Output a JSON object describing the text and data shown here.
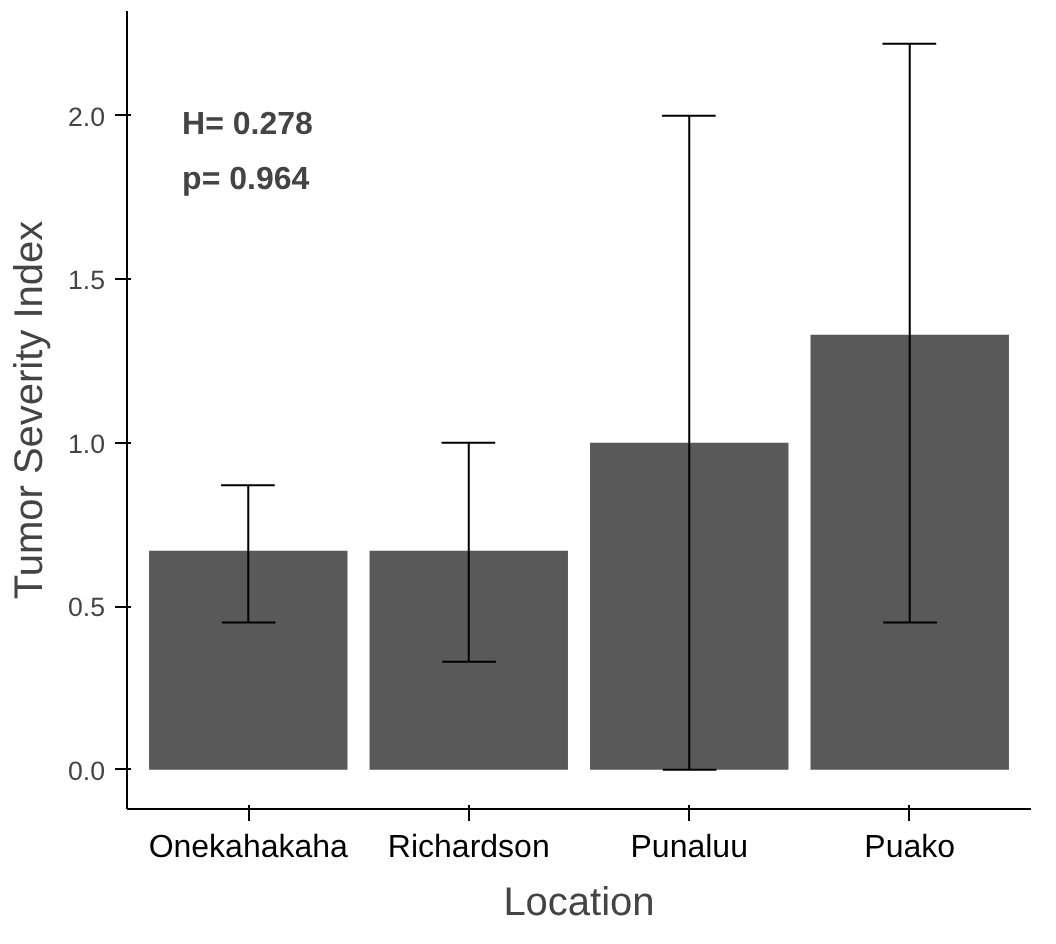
{
  "chart_data": {
    "type": "bar",
    "xlabel": "Location",
    "ylabel": "Tumor Severity Index",
    "categories": [
      "Onekahakaha",
      "Richardson",
      "Punaluu",
      "Puako"
    ],
    "values": [
      0.67,
      0.67,
      1.0,
      1.33
    ],
    "errors": [
      [
        0.45,
        0.87
      ],
      [
        0.33,
        1.0
      ],
      [
        0.0,
        2.0
      ],
      [
        0.45,
        2.22
      ]
    ],
    "color": "#595959",
    "ylim": [
      -0.12,
      2.32
    ],
    "yticks": [
      {
        "value": 0,
        "label": "0.0"
      },
      0.5,
      {
        "value": 1,
        "label": "1.0"
      },
      1.5,
      {
        "value": 2,
        "label": "2.0"
      }
    ],
    "grid": false,
    "annotations": [
      "H= 0.278",
      "p= 0.964"
    ]
  }
}
